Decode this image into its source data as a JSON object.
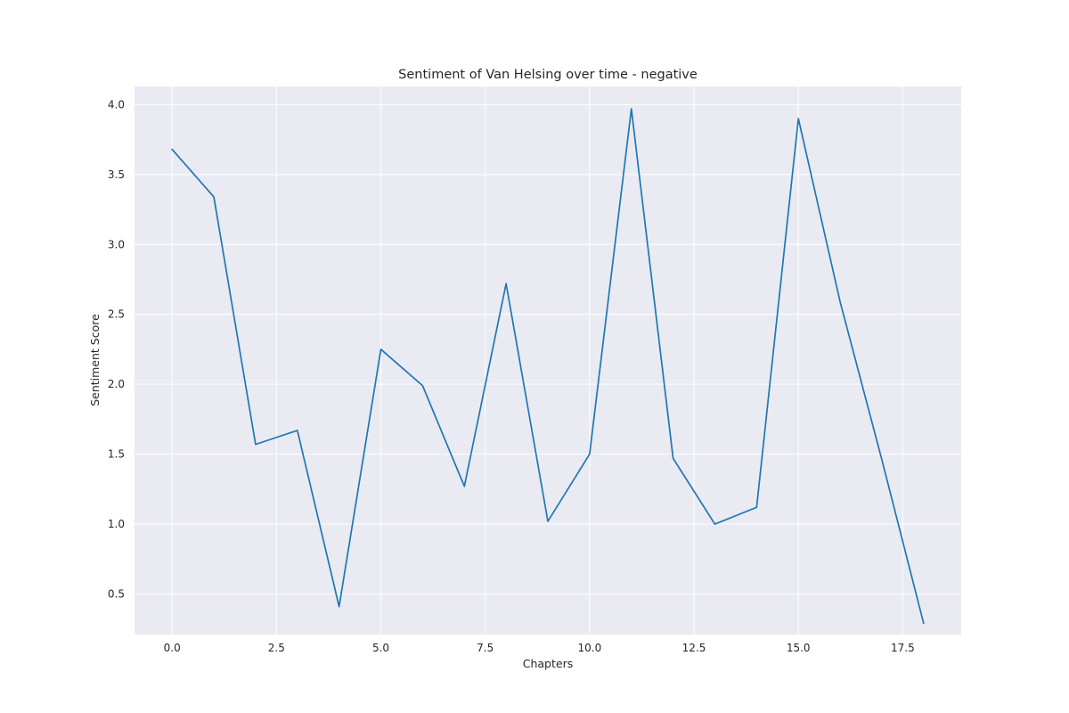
{
  "chart_data": {
    "type": "line",
    "title": "Sentiment of Van Helsing over time - negative",
    "xlabel": "Chapters",
    "ylabel": "Sentiment Score",
    "xlim": [
      -0.9,
      18.9
    ],
    "ylim": [
      0.21,
      4.13
    ],
    "xticks": [
      0.0,
      2.5,
      5.0,
      7.5,
      10.0,
      12.5,
      15.0,
      17.5
    ],
    "xtick_labels": [
      "0.0",
      "2.5",
      "5.0",
      "7.5",
      "10.0",
      "12.5",
      "15.0",
      "17.5"
    ],
    "yticks": [
      0.5,
      1.0,
      1.5,
      2.0,
      2.5,
      3.0,
      3.5,
      4.0
    ],
    "ytick_labels": [
      "0.5",
      "1.0",
      "1.5",
      "2.0",
      "2.5",
      "3.0",
      "3.5",
      "4.0"
    ],
    "grid": true,
    "colors": {
      "background": "#eaeaf2",
      "grid": "#ffffff",
      "series": "#1f77b4"
    },
    "series": [
      {
        "x": [
          0,
          1,
          2,
          3,
          4,
          5,
          6,
          7,
          8,
          9,
          10,
          11,
          12,
          13,
          14,
          15,
          16,
          17,
          18
        ],
        "values": [
          3.68,
          3.34,
          1.57,
          1.67,
          0.41,
          2.25,
          1.99,
          1.27,
          2.72,
          1.02,
          1.5,
          3.97,
          1.47,
          1.0,
          1.12,
          3.9,
          2.59,
          1.46,
          0.29
        ]
      }
    ]
  }
}
